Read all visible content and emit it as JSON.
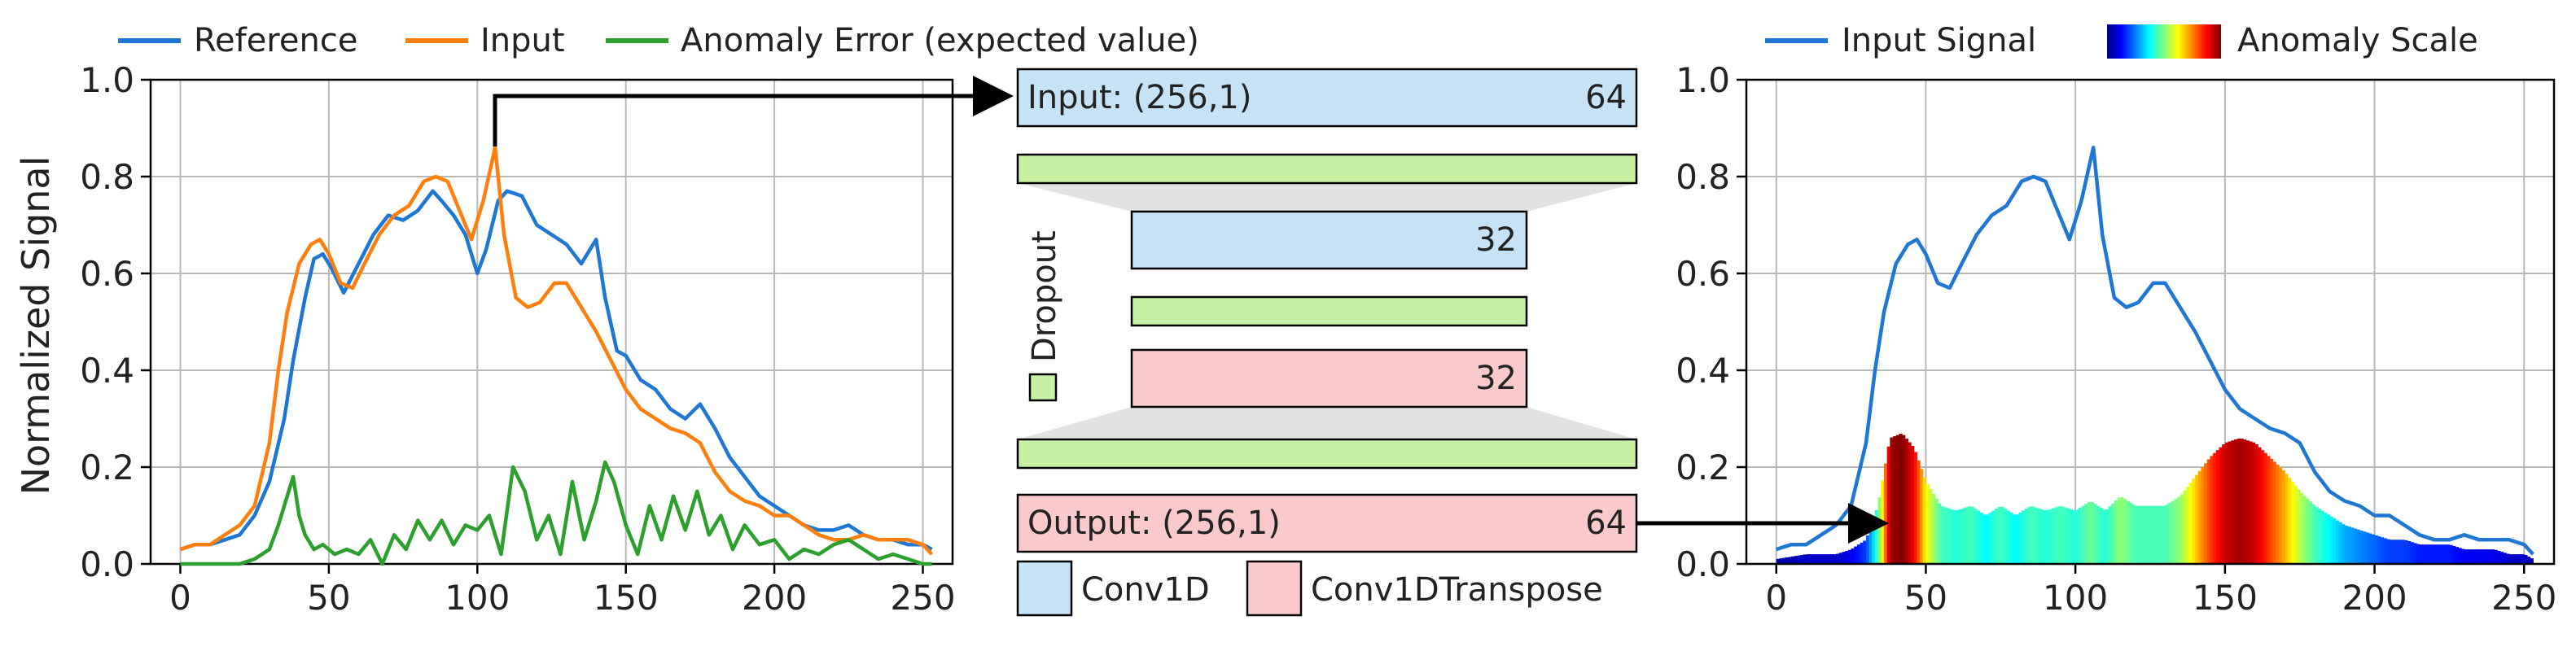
{
  "colors": {
    "reference": "#1f77d4",
    "input": "#ff7f0e",
    "anomaly": "#2ca02c",
    "conv1d": "#c6e2f7",
    "conv1dtranspose": "#f9c9cb",
    "dropout": "#c6f0a2",
    "grid": "#b8b8b8"
  },
  "left_legend": {
    "reference": "Reference",
    "input": "Input",
    "anomaly": "Anomaly Error (expected value)"
  },
  "right_legend": {
    "input_signal": "Input Signal",
    "anomaly_scale": "Anomaly Scale"
  },
  "diagram": {
    "input_label": "Input: (256,1)",
    "input_units": "64",
    "enc_units": "32",
    "dec_units": "32",
    "output_label": "Output: (256,1)",
    "output_units": "64",
    "dropout_label": "Dropout",
    "legend_conv1d": "Conv1D",
    "legend_conv1dtranspose": "Conv1DTranspose"
  },
  "chart_data": [
    {
      "type": "line",
      "ylabel": "Normalized Signal",
      "xlabel": "",
      "xlim": [
        -10,
        260
      ],
      "ylim": [
        0,
        1.0
      ],
      "xticks": [
        0,
        50,
        100,
        150,
        200,
        250
      ],
      "yticks": [
        "0.0",
        "0.2",
        "0.4",
        "0.6",
        "0.8",
        "1.0"
      ],
      "grid": true,
      "legend": "top",
      "series": [
        {
          "name": "Reference",
          "x": [
            0,
            5,
            10,
            15,
            20,
            25,
            30,
            35,
            38,
            42,
            45,
            48,
            51,
            55,
            60,
            65,
            70,
            75,
            80,
            85,
            88,
            92,
            96,
            100,
            103,
            107,
            110,
            115,
            120,
            125,
            130,
            135,
            140,
            143,
            147,
            150,
            155,
            160,
            165,
            170,
            175,
            180,
            185,
            190,
            195,
            200,
            205,
            210,
            215,
            220,
            225,
            230,
            235,
            240,
            245,
            250,
            253
          ],
          "y": [
            0.03,
            0.04,
            0.04,
            0.05,
            0.06,
            0.1,
            0.17,
            0.3,
            0.42,
            0.55,
            0.63,
            0.64,
            0.61,
            0.56,
            0.62,
            0.68,
            0.72,
            0.71,
            0.73,
            0.77,
            0.75,
            0.72,
            0.68,
            0.6,
            0.65,
            0.75,
            0.77,
            0.76,
            0.7,
            0.68,
            0.66,
            0.62,
            0.67,
            0.55,
            0.44,
            0.43,
            0.38,
            0.36,
            0.32,
            0.3,
            0.33,
            0.28,
            0.22,
            0.18,
            0.14,
            0.12,
            0.1,
            0.08,
            0.07,
            0.07,
            0.08,
            0.06,
            0.05,
            0.05,
            0.04,
            0.04,
            0.03
          ]
        },
        {
          "name": "Input",
          "x": [
            0,
            5,
            10,
            15,
            20,
            25,
            30,
            33,
            36,
            40,
            44,
            47,
            50,
            54,
            58,
            62,
            67,
            72,
            77,
            82,
            86,
            90,
            94,
            98,
            102,
            106,
            109,
            113,
            117,
            121,
            126,
            130,
            135,
            140,
            145,
            150,
            155,
            160,
            165,
            170,
            175,
            180,
            185,
            190,
            195,
            200,
            205,
            210,
            215,
            220,
            225,
            230,
            235,
            240,
            245,
            250,
            253
          ],
          "y": [
            0.03,
            0.04,
            0.04,
            0.06,
            0.08,
            0.12,
            0.25,
            0.4,
            0.52,
            0.62,
            0.66,
            0.67,
            0.64,
            0.58,
            0.57,
            0.62,
            0.68,
            0.72,
            0.74,
            0.79,
            0.8,
            0.79,
            0.73,
            0.67,
            0.75,
            0.86,
            0.68,
            0.55,
            0.53,
            0.54,
            0.58,
            0.58,
            0.53,
            0.48,
            0.42,
            0.36,
            0.32,
            0.3,
            0.28,
            0.27,
            0.25,
            0.19,
            0.15,
            0.13,
            0.12,
            0.1,
            0.1,
            0.08,
            0.06,
            0.05,
            0.05,
            0.06,
            0.05,
            0.05,
            0.05,
            0.04,
            0.02
          ]
        },
        {
          "name": "Anomaly Error (expected value)",
          "x": [
            0,
            10,
            20,
            25,
            30,
            33,
            36,
            38,
            40,
            42,
            45,
            48,
            52,
            56,
            60,
            64,
            68,
            72,
            76,
            80,
            84,
            88,
            92,
            96,
            100,
            104,
            108,
            112,
            116,
            120,
            124,
            128,
            132,
            136,
            140,
            143,
            146,
            150,
            154,
            158,
            162,
            166,
            170,
            174,
            178,
            182,
            186,
            190,
            195,
            200,
            205,
            210,
            215,
            220,
            225,
            230,
            235,
            240,
            245,
            250,
            253
          ],
          "y": [
            0.0,
            0.0,
            0.0,
            0.01,
            0.03,
            0.08,
            0.14,
            0.18,
            0.1,
            0.06,
            0.03,
            0.04,
            0.02,
            0.03,
            0.02,
            0.05,
            0.0,
            0.06,
            0.03,
            0.09,
            0.05,
            0.09,
            0.04,
            0.08,
            0.07,
            0.1,
            0.02,
            0.2,
            0.15,
            0.05,
            0.1,
            0.02,
            0.17,
            0.05,
            0.13,
            0.21,
            0.17,
            0.08,
            0.02,
            0.12,
            0.05,
            0.14,
            0.07,
            0.15,
            0.06,
            0.1,
            0.03,
            0.08,
            0.04,
            0.05,
            0.01,
            0.03,
            0.02,
            0.04,
            0.05,
            0.03,
            0.01,
            0.02,
            0.01,
            0.0,
            0.0
          ]
        }
      ]
    },
    {
      "type": "area",
      "xlim": [
        -10,
        260
      ],
      "ylim": [
        0,
        1.0
      ],
      "xticks": [
        0,
        50,
        100,
        150,
        200,
        250
      ],
      "yticks": [
        "0.0",
        "0.2",
        "0.4",
        "0.6",
        "0.8",
        "1.0"
      ],
      "grid": true,
      "legend": "top",
      "series": [
        {
          "name": "Input Signal",
          "x": [
            0,
            5,
            10,
            15,
            20,
            25,
            30,
            33,
            36,
            40,
            44,
            47,
            50,
            54,
            58,
            62,
            67,
            72,
            77,
            82,
            86,
            90,
            94,
            98,
            102,
            106,
            109,
            113,
            117,
            121,
            126,
            130,
            135,
            140,
            145,
            150,
            155,
            160,
            165,
            170,
            175,
            180,
            185,
            190,
            195,
            200,
            205,
            210,
            215,
            220,
            225,
            230,
            235,
            240,
            245,
            250,
            253
          ],
          "y": [
            0.03,
            0.04,
            0.04,
            0.06,
            0.08,
            0.12,
            0.25,
            0.4,
            0.52,
            0.62,
            0.66,
            0.67,
            0.64,
            0.58,
            0.57,
            0.62,
            0.68,
            0.72,
            0.74,
            0.79,
            0.8,
            0.79,
            0.73,
            0.67,
            0.75,
            0.86,
            0.68,
            0.55,
            0.53,
            0.54,
            0.58,
            0.58,
            0.53,
            0.48,
            0.42,
            0.36,
            0.32,
            0.3,
            0.28,
            0.27,
            0.25,
            0.19,
            0.15,
            0.13,
            0.12,
            0.1,
            0.1,
            0.08,
            0.06,
            0.05,
            0.05,
            0.06,
            0.05,
            0.05,
            0.05,
            0.04,
            0.02
          ]
        },
        {
          "name": "Anomaly Scale",
          "x": [
            0,
            10,
            20,
            25,
            30,
            34,
            38,
            42,
            46,
            50,
            55,
            60,
            65,
            70,
            75,
            80,
            85,
            90,
            95,
            100,
            105,
            110,
            115,
            120,
            125,
            130,
            135,
            140,
            145,
            150,
            155,
            160,
            165,
            170,
            175,
            180,
            185,
            190,
            195,
            200,
            205,
            210,
            215,
            220,
            225,
            230,
            235,
            240,
            245,
            250,
            253
          ],
          "y": [
            0.01,
            0.02,
            0.02,
            0.03,
            0.05,
            0.12,
            0.26,
            0.27,
            0.24,
            0.17,
            0.12,
            0.11,
            0.12,
            0.1,
            0.12,
            0.1,
            0.12,
            0.11,
            0.12,
            0.11,
            0.13,
            0.11,
            0.14,
            0.12,
            0.12,
            0.12,
            0.14,
            0.18,
            0.22,
            0.25,
            0.26,
            0.25,
            0.22,
            0.19,
            0.15,
            0.12,
            0.1,
            0.08,
            0.07,
            0.06,
            0.05,
            0.05,
            0.04,
            0.04,
            0.04,
            0.03,
            0.03,
            0.03,
            0.02,
            0.02,
            0.01
          ]
        }
      ]
    }
  ]
}
